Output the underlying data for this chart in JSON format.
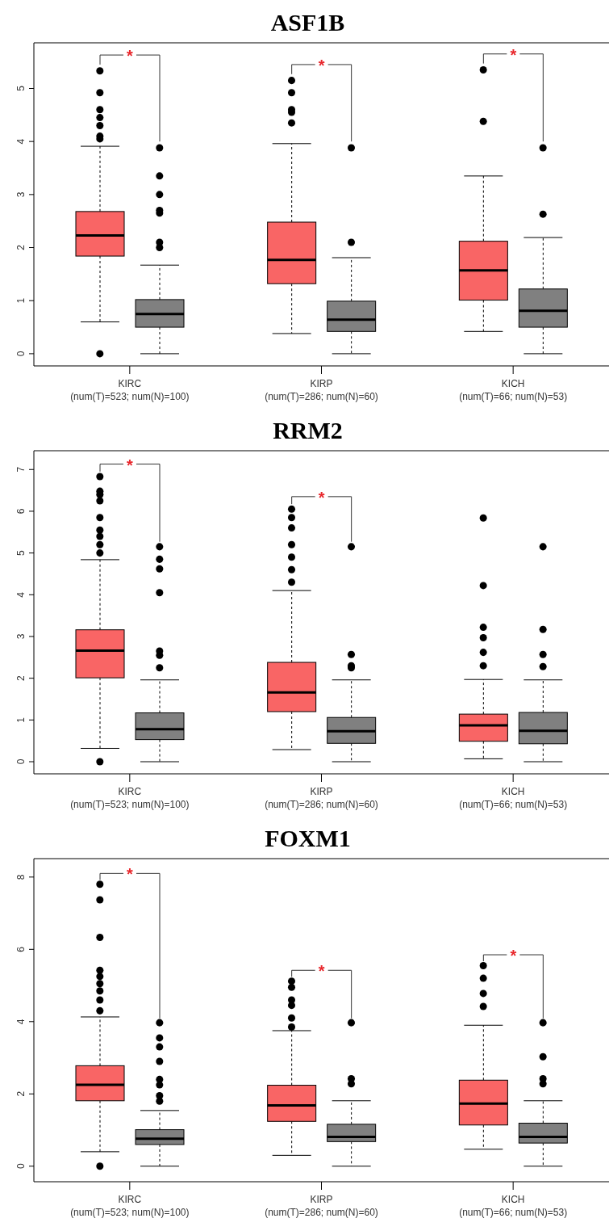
{
  "chart_data": [
    {
      "type": "box",
      "title": "ASF1B",
      "categories": [
        "KIRC\n(num(T)=523; num(N)=100)",
        "KIRP\n(num(T)=286; num(N)=60)",
        "KICH\n(num(T)=66; num(N)=53)"
      ],
      "ylim": [
        -0.23,
        5.86
      ],
      "yticks": [
        0,
        1,
        2,
        3,
        4,
        5
      ],
      "series": [
        {
          "color": "#f96565",
          "boxes": [
            {
              "low": 0.6,
              "q1": 1.84,
              "median": 2.23,
              "q3": 2.68,
              "high": 3.91,
              "outliers": [
                0,
                4.05,
                4.1,
                4.3,
                4.45,
                4.6,
                4.92,
                5.33
              ]
            },
            {
              "low": 0.38,
              "q1": 1.32,
              "median": 1.77,
              "q3": 2.48,
              "high": 3.96,
              "outliers": [
                4.35,
                4.55,
                4.6,
                4.92,
                5.15
              ]
            },
            {
              "low": 0.42,
              "q1": 1.01,
              "median": 1.57,
              "q3": 2.12,
              "high": 3.35,
              "outliers": [
                4.38,
                5.35
              ]
            }
          ]
        },
        {
          "color": "#808080",
          "boxes": [
            {
              "low": 0,
              "q1": 0.5,
              "median": 0.75,
              "q3": 1.02,
              "high": 1.67,
              "outliers": [
                2.0,
                2.1,
                2.65,
                2.7,
                3.0,
                3.35,
                3.88
              ]
            },
            {
              "low": 0,
              "q1": 0.42,
              "median": 0.64,
              "q3": 0.99,
              "high": 1.81,
              "outliers": [
                2.1,
                3.88
              ]
            },
            {
              "low": 0,
              "q1": 0.5,
              "median": 0.81,
              "q3": 1.22,
              "high": 2.19,
              "outliers": [
                2.63,
                3.88
              ]
            }
          ]
        }
      ],
      "annotations": [
        "*",
        "*",
        "*"
      ]
    },
    {
      "type": "box",
      "title": "RRM2",
      "categories": [
        "KIRC\n(num(T)=523; num(N)=100)",
        "KIRP\n(num(T)=286; num(N)=60)",
        "KICH\n(num(T)=66; num(N)=53)"
      ],
      "ylim": [
        -0.29,
        7.45
      ],
      "yticks": [
        0,
        1,
        2,
        3,
        4,
        5,
        6,
        7
      ],
      "series": [
        {
          "color": "#f96565",
          "boxes": [
            {
              "low": 0.32,
              "q1": 2.01,
              "median": 2.66,
              "q3": 3.16,
              "high": 4.84,
              "outliers": [
                0,
                5.0,
                5.2,
                5.4,
                5.55,
                5.85,
                6.25,
                6.4,
                6.48,
                6.83
              ]
            },
            {
              "low": 0.29,
              "q1": 1.2,
              "median": 1.66,
              "q3": 2.38,
              "high": 4.1,
              "outliers": [
                4.3,
                4.6,
                4.9,
                5.2,
                5.6,
                5.85,
                6.05
              ]
            },
            {
              "low": 0.07,
              "q1": 0.49,
              "median": 0.87,
              "q3": 1.14,
              "high": 1.97,
              "outliers": [
                2.3,
                2.62,
                2.97,
                3.22,
                4.22,
                5.84
              ]
            }
          ]
        },
        {
          "color": "#808080",
          "boxes": [
            {
              "low": 0,
              "q1": 0.53,
              "median": 0.78,
              "q3": 1.17,
              "high": 1.96,
              "outliers": [
                2.25,
                2.55,
                2.65,
                4.05,
                4.62,
                4.85,
                5.15
              ]
            },
            {
              "low": 0,
              "q1": 0.44,
              "median": 0.73,
              "q3": 1.06,
              "high": 1.96,
              "outliers": [
                2.25,
                2.3,
                2.57,
                5.15
              ]
            },
            {
              "low": 0,
              "q1": 0.43,
              "median": 0.74,
              "q3": 1.18,
              "high": 1.96,
              "outliers": [
                2.28,
                2.57,
                3.17,
                5.15
              ]
            }
          ]
        }
      ],
      "annotations": [
        "*",
        "*"
      ]
    },
    {
      "type": "box",
      "title": "FOXM1",
      "categories": [
        "KIRC\n(num(T)=523; num(N)=100)",
        "KIRP\n(num(T)=286; num(N)=60)",
        "KICH\n(num(T)=66; num(N)=53)"
      ],
      "ylim": [
        -0.43,
        8.51
      ],
      "yticks": [
        0,
        2,
        4,
        6,
        8
      ],
      "series": [
        {
          "color": "#f96565",
          "boxes": [
            {
              "low": 0.4,
              "q1": 1.81,
              "median": 2.25,
              "q3": 2.78,
              "high": 4.13,
              "outliers": [
                0,
                4.3,
                4.6,
                4.85,
                5.05,
                5.25,
                5.42,
                6.33,
                7.37,
                7.8
              ]
            },
            {
              "low": 0.3,
              "q1": 1.24,
              "median": 1.68,
              "q3": 2.24,
              "high": 3.75,
              "outliers": [
                3.85,
                4.1,
                4.45,
                4.6,
                4.95,
                5.12
              ]
            },
            {
              "low": 0.47,
              "q1": 1.14,
              "median": 1.73,
              "q3": 2.38,
              "high": 3.9,
              "outliers": [
                4.42,
                4.78,
                5.2,
                5.55
              ]
            }
          ]
        },
        {
          "color": "#808080",
          "boxes": [
            {
              "low": 0,
              "q1": 0.6,
              "median": 0.76,
              "q3": 1.01,
              "high": 1.54,
              "outliers": [
                1.8,
                1.95,
                2.25,
                2.4,
                2.9,
                3.3,
                3.55,
                3.97
              ]
            },
            {
              "low": 0,
              "q1": 0.68,
              "median": 0.81,
              "q3": 1.16,
              "high": 1.81,
              "outliers": [
                2.28,
                2.42,
                3.97
              ]
            },
            {
              "low": 0,
              "q1": 0.64,
              "median": 0.81,
              "q3": 1.19,
              "high": 1.81,
              "outliers": [
                2.28,
                2.42,
                3.03,
                3.97
              ]
            }
          ]
        }
      ],
      "annotations": [
        "*",
        "*",
        "*"
      ]
    }
  ]
}
